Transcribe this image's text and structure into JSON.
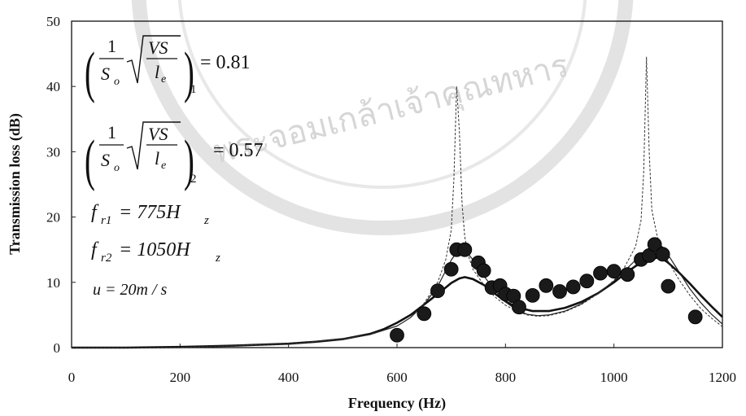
{
  "chart_data": {
    "type": "line",
    "xlabel": "Frequency (Hz)",
    "ylabel": "Transmission loss (dB)",
    "xlim": [
      0,
      1200
    ],
    "ylim": [
      0,
      50
    ],
    "x_ticks": [
      0,
      200,
      400,
      600,
      800,
      1000,
      1200
    ],
    "y_ticks": [
      0,
      10,
      20,
      30,
      40,
      50
    ],
    "grid": false,
    "legend": "none",
    "series": [
      {
        "style": "solid-thick",
        "x": [
          0,
          100,
          200,
          300,
          400,
          450,
          500,
          550,
          575,
          600,
          625,
          650,
          675,
          700,
          715,
          725,
          740,
          760,
          780,
          800,
          820,
          850,
          880,
          910,
          940,
          970,
          1000,
          1020,
          1040,
          1060,
          1080,
          1090,
          1100,
          1120,
          1140,
          1160,
          1180,
          1200
        ],
        "y": [
          0,
          0,
          0.1,
          0.3,
          0.6,
          0.9,
          1.3,
          2.1,
          2.8,
          3.8,
          5.0,
          6.6,
          8.2,
          9.9,
          10.6,
          10.8,
          10.5,
          9.6,
          8.3,
          7.1,
          6.2,
          5.6,
          5.6,
          6.1,
          7.0,
          8.3,
          10.0,
          11.3,
          12.5,
          13.4,
          13.8,
          13.6,
          13.0,
          11.5,
          9.8,
          8.0,
          6.3,
          4.7
        ]
      },
      {
        "style": "solid-thin",
        "x": [
          0,
          200,
          400,
          500,
          550,
          600,
          625,
          650,
          675,
          690,
          700,
          710,
          720,
          730,
          745,
          760,
          780,
          800,
          820,
          840,
          860,
          880,
          910,
          940,
          970,
          1000,
          1020,
          1040,
          1060,
          1070,
          1080,
          1090,
          1100,
          1120,
          1140,
          1160,
          1180,
          1200
        ],
        "y": [
          0,
          0,
          0.6,
          1.3,
          2.0,
          3.3,
          4.6,
          6.6,
          9.4,
          11.8,
          13.4,
          14.6,
          14.9,
          14.5,
          12.9,
          11.0,
          8.8,
          7.0,
          5.8,
          5.1,
          4.9,
          5.0,
          5.6,
          6.7,
          8.3,
          10.2,
          11.8,
          13.4,
          14.9,
          15.6,
          15.9,
          15.4,
          14.2,
          11.6,
          9.0,
          6.9,
          5.1,
          3.6
        ]
      },
      {
        "style": "dotted",
        "x": [
          0,
          200,
          400,
          500,
          550,
          600,
          625,
          650,
          675,
          690,
          700,
          705,
          710,
          715,
          720,
          725,
          730,
          740,
          760,
          780,
          800,
          820,
          840,
          860,
          880,
          910,
          940,
          970,
          1000,
          1020,
          1040,
          1050,
          1055,
          1060,
          1065,
          1070,
          1080,
          1090,
          1100,
          1120,
          1140,
          1160,
          1180,
          1200
        ],
        "y": [
          0,
          0,
          0.6,
          1.3,
          2.0,
          3.3,
          4.6,
          6.8,
          10.0,
          13.5,
          18.0,
          26.0,
          40.0,
          33.0,
          22.0,
          17.0,
          14.5,
          12.0,
          9.6,
          7.8,
          6.5,
          5.6,
          5.0,
          4.8,
          4.9,
          5.5,
          6.6,
          8.2,
          10.3,
          12.4,
          15.5,
          19.5,
          27.0,
          44.5,
          30.0,
          21.0,
          17.0,
          15.0,
          13.2,
          10.4,
          8.0,
          6.0,
          4.5,
          3.2
        ]
      },
      {
        "style": "markers",
        "x": [
          600,
          650,
          675,
          700,
          710,
          725,
          750,
          760,
          775,
          790,
          800,
          815,
          825,
          850,
          875,
          900,
          925,
          950,
          975,
          1000,
          1025,
          1050,
          1065,
          1075,
          1090,
          1100,
          1150
        ],
        "y": [
          1.9,
          5.2,
          8.7,
          12.0,
          15.0,
          15.0,
          13.0,
          11.8,
          9.2,
          9.5,
          8.2,
          7.9,
          6.2,
          8.0,
          9.5,
          8.6,
          9.3,
          10.2,
          11.4,
          11.7,
          11.2,
          13.5,
          14.1,
          15.8,
          14.3,
          9.4,
          4.7
        ]
      }
    ],
    "annotations": {
      "eq1_result": "= 0.81",
      "eq1_sub": "1",
      "eq2_result": "= 0.57",
      "eq2_sub": "2",
      "frac_numerator": "1",
      "frac_denominator": "S",
      "frac_denominator_sub": "o",
      "root_numerator": "VS",
      "root_denominator": "l",
      "root_denominator_sub": "e",
      "fr1_symbol": "f",
      "fr1_sub": "r1",
      "fr1_value": "= 775H",
      "fr1_unit_sub": "z",
      "fr2_symbol": "f",
      "fr2_sub": "r2",
      "fr2_value": "= 1050H",
      "fr2_unit_sub": "z",
      "velocity": "u = 20m / s"
    }
  },
  "watermark": {
    "text": "พระจอมเกล้าเจ้าคุณทหาร"
  }
}
